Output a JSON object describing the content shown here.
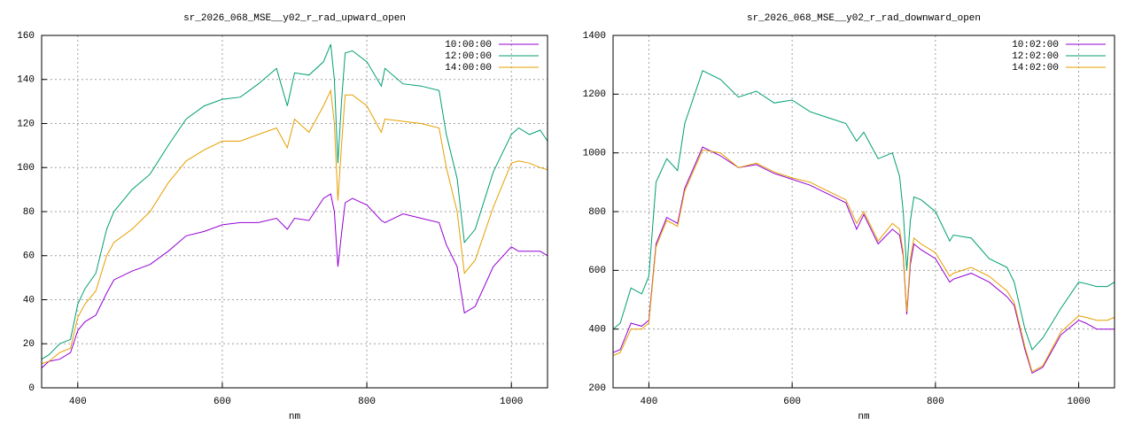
{
  "chart_data": [
    {
      "type": "line",
      "title": "sr_2026_068_MSE__y02_r_rad_upward_open",
      "x_label": "nm",
      "xlim": [
        350,
        1050
      ],
      "xticks": [
        400,
        600,
        800,
        1000
      ],
      "ylim": [
        0,
        160
      ],
      "yticks": [
        0,
        20,
        40,
        60,
        80,
        100,
        120,
        140,
        160
      ],
      "grid": true,
      "legend": "top-right",
      "x": [
        350,
        360,
        375,
        390,
        400,
        410,
        425,
        440,
        450,
        475,
        500,
        525,
        550,
        575,
        600,
        625,
        650,
        675,
        690,
        700,
        720,
        740,
        750,
        755,
        760,
        765,
        770,
        780,
        800,
        820,
        825,
        850,
        875,
        900,
        910,
        925,
        935,
        950,
        975,
        1000,
        1010,
        1025,
        1040,
        1050
      ],
      "series": [
        {
          "name": "10:00:00",
          "color": "#9400d3",
          "values": [
            9,
            12,
            13,
            16,
            26,
            30,
            33,
            43,
            49,
            53,
            56,
            62,
            69,
            71,
            74,
            75,
            75,
            77,
            72,
            77,
            76,
            86,
            88,
            80,
            55,
            70,
            84,
            86,
            83,
            76,
            75,
            79,
            77,
            75,
            65,
            55,
            34,
            37,
            55,
            64,
            62,
            62,
            62,
            60
          ]
        },
        {
          "name": "12:00:00",
          "color": "#009e73",
          "values": [
            13,
            15,
            20,
            22,
            38,
            45,
            52,
            72,
            80,
            90,
            97,
            110,
            122,
            128,
            131,
            132,
            138,
            145,
            128,
            143,
            142,
            148,
            156,
            140,
            102,
            130,
            152,
            153,
            148,
            137,
            145,
            138,
            137,
            135,
            115,
            95,
            66,
            72,
            98,
            115,
            118,
            115,
            117,
            112
          ]
        },
        {
          "name": "14:00:00",
          "color": "#e69f00",
          "values": [
            11,
            12,
            16,
            18,
            32,
            38,
            44,
            60,
            66,
            72,
            80,
            93,
            103,
            108,
            112,
            112,
            115,
            118,
            109,
            122,
            116,
            128,
            135,
            120,
            85,
            110,
            133,
            133,
            128,
            116,
            122,
            121,
            120,
            118,
            100,
            80,
            52,
            58,
            82,
            102,
            103,
            102,
            100,
            99
          ]
        }
      ]
    },
    {
      "type": "line",
      "title": "sr_2026_068_MSE__y02_r_rad_downward_open",
      "x_label": "nm",
      "xlim": [
        350,
        1050
      ],
      "xticks": [
        400,
        600,
        800,
        1000
      ],
      "ylim": [
        200,
        1400
      ],
      "yticks": [
        200,
        400,
        600,
        800,
        1000,
        1200,
        1400
      ],
      "grid": true,
      "legend": "top-right",
      "x": [
        350,
        360,
        375,
        390,
        400,
        410,
        425,
        440,
        450,
        475,
        500,
        525,
        550,
        575,
        600,
        625,
        650,
        675,
        690,
        700,
        720,
        740,
        750,
        755,
        760,
        765,
        770,
        780,
        800,
        820,
        825,
        850,
        875,
        900,
        910,
        925,
        935,
        950,
        975,
        1000,
        1010,
        1025,
        1040,
        1050
      ],
      "series": [
        {
          "name": "10:02:00",
          "color": "#9400d3",
          "values": [
            320,
            330,
            420,
            410,
            430,
            690,
            780,
            760,
            880,
            1020,
            990,
            950,
            960,
            930,
            910,
            890,
            860,
            830,
            740,
            790,
            690,
            740,
            720,
            650,
            450,
            620,
            690,
            670,
            640,
            560,
            570,
            590,
            560,
            510,
            480,
            330,
            250,
            270,
            380,
            430,
            420,
            400,
            400,
            400
          ]
        },
        {
          "name": "12:02:00",
          "color": "#009e73",
          "values": [
            400,
            420,
            540,
            520,
            580,
            900,
            980,
            940,
            1100,
            1280,
            1250,
            1190,
            1210,
            1170,
            1180,
            1140,
            1120,
            1100,
            1040,
            1070,
            980,
            1000,
            920,
            800,
            600,
            770,
            850,
            840,
            800,
            700,
            720,
            710,
            640,
            610,
            560,
            400,
            330,
            370,
            470,
            560,
            555,
            545,
            545,
            560
          ]
        },
        {
          "name": "14:02:00",
          "color": "#e69f00",
          "values": [
            310,
            320,
            400,
            400,
            420,
            680,
            770,
            750,
            870,
            1010,
            1000,
            950,
            965,
            935,
            915,
            900,
            870,
            840,
            760,
            800,
            700,
            760,
            740,
            660,
            460,
            640,
            710,
            690,
            660,
            580,
            590,
            610,
            580,
            530,
            490,
            340,
            255,
            275,
            390,
            445,
            440,
            430,
            430,
            440
          ]
        }
      ]
    }
  ]
}
